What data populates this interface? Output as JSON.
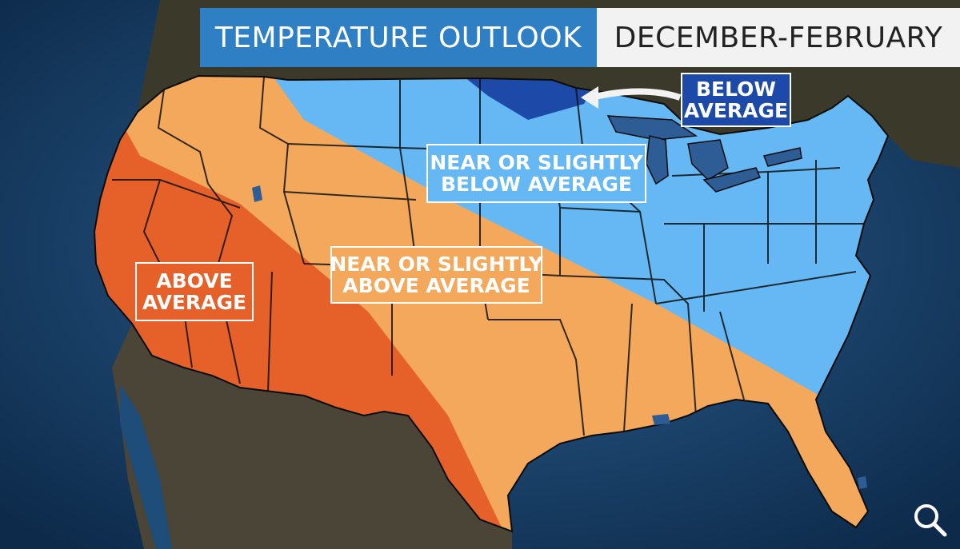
{
  "header": {
    "title": "TEMPERATURE OUTLOOK",
    "period": "DECEMBER-FEBRUARY"
  },
  "map": {
    "regions": [
      {
        "label_lines": [
          "BELOW",
          "AVERAGE"
        ],
        "category": "below-average",
        "color": "#1d4aa8"
      },
      {
        "label_lines": [
          "NEAR OR SLIGHTLY",
          "BELOW AVERAGE"
        ],
        "category": "near-or-slightly-below-average",
        "color": "#66b8f4"
      },
      {
        "label_lines": [
          "NEAR OR SLIGHTLY",
          "ABOVE AVERAGE"
        ],
        "category": "near-or-slightly-above-average",
        "color": "#f3a85b"
      },
      {
        "label_lines": [
          "ABOVE",
          "AVERAGE"
        ],
        "category": "above-average",
        "color": "#e6602a"
      }
    ],
    "colors": {
      "ocean": "#1f4d7a",
      "land": "#3a3a2c",
      "below": "#1d4aa8",
      "near_below": "#66b8f4",
      "near_above": "#f3a85b",
      "above": "#e6602a"
    }
  },
  "controls": {
    "zoom_icon": "magnifier-icon"
  }
}
